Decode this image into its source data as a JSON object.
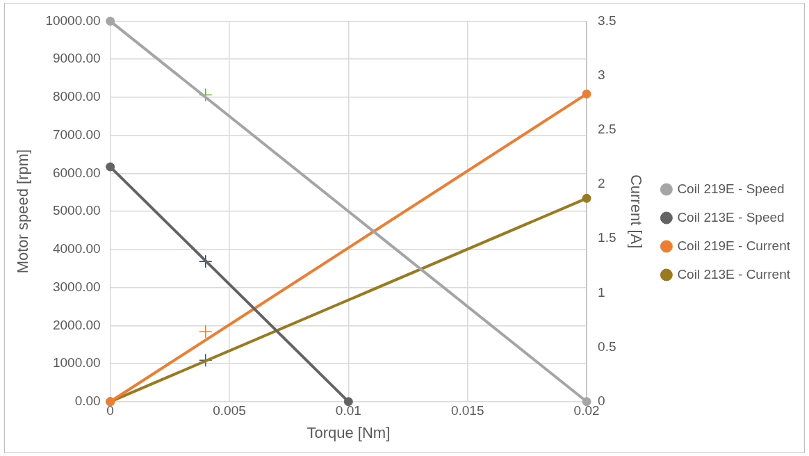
{
  "chart_data": {
    "type": "line",
    "xlabel": "Torque [Nm]",
    "ylabel": "Motor speed [rpm]",
    "y2label": "Current [A]",
    "xlim": [
      0,
      0.02
    ],
    "xticks": [
      0,
      0.005,
      0.01,
      0.015,
      0.02
    ],
    "ylim": [
      0,
      10000
    ],
    "yticks": [
      {
        "value": 0,
        "label": "0.00"
      },
      {
        "value": 1000,
        "label": "1000.00"
      },
      {
        "value": 2000,
        "label": "2000.00"
      },
      {
        "value": 3000,
        "label": "3000.00"
      },
      {
        "value": 4000,
        "label": "4000.00"
      },
      {
        "value": 5000,
        "label": "5000.00"
      },
      {
        "value": 6000,
        "label": "6000.00"
      },
      {
        "value": 7000,
        "label": "7000.00"
      },
      {
        "value": 8000,
        "label": "8000.00"
      },
      {
        "value": 9000,
        "label": "9000.00"
      },
      {
        "value": 10000,
        "label": "10000.00"
      }
    ],
    "y2lim": [
      0,
      3.5
    ],
    "y2ticks": [
      0,
      0.5,
      1,
      1.5,
      2,
      2.5,
      3,
      3.5
    ],
    "grid": true,
    "legend": "right",
    "marker": "circle",
    "line_style": "solid",
    "series": [
      {
        "name": "Coil 219E - Speed",
        "color": "#a5a5a5",
        "x": [
          0,
          0.02
        ],
        "values": [
          10000,
          0
        ]
      },
      {
        "name": "Coil 213E - Speed",
        "color": "#636363",
        "x": [
          0,
          0.01
        ],
        "values": [
          6170,
          0
        ]
      },
      {
        "name": "Coil 219E - Current",
        "color": "#ed7d31",
        "axis": "y2",
        "x": [
          0,
          0.02
        ],
        "values": [
          0,
          2.83
        ]
      },
      {
        "name": "Coil 213E - Current",
        "color": "#997a1f",
        "axis": "y2",
        "x": [
          0,
          0.02
        ],
        "values": [
          0,
          1.87
        ]
      },
      {
        "type": "scatter",
        "marker": "cross",
        "color": "#70ad47",
        "x": [
          0.004
        ],
        "values": [
          8060
        ]
      },
      {
        "type": "scatter",
        "marker": "cross",
        "color": "#264478",
        "x": [
          0.004
        ],
        "values": [
          3680
        ]
      },
      {
        "type": "scatter",
        "marker": "cross",
        "color": "#ed7d31",
        "x": [
          0.004
        ],
        "values": [
          1840
        ]
      },
      {
        "type": "scatter",
        "marker": "cross",
        "color": "#2f5597",
        "x": [
          0.004
        ],
        "values": [
          1090
        ]
      }
    ]
  }
}
